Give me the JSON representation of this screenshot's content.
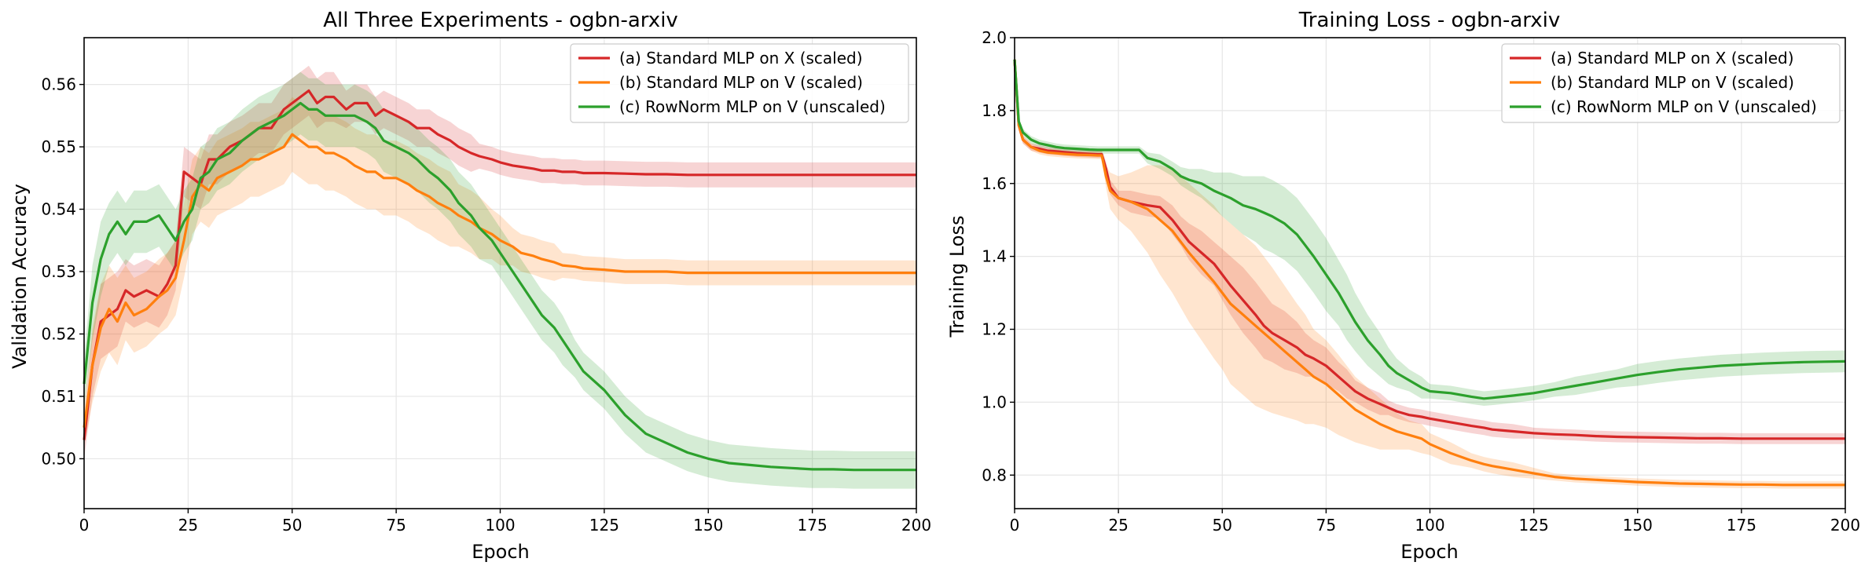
{
  "charts": [
    {
      "title": "All Three Experiments - ogbn-arxiv",
      "xlabel": "Epoch",
      "ylabel": "Validation Accuracy"
    },
    {
      "title": "Training Loss - ogbn-arxiv",
      "xlabel": "Epoch",
      "ylabel": "Training Loss"
    }
  ],
  "chart_data": [
    {
      "type": "line",
      "title": "All Three Experiments - ogbn-arxiv",
      "xlabel": "Epoch",
      "ylabel": "Validation Accuracy",
      "xlim": [
        0,
        200
      ],
      "ylim": [
        0.492,
        0.5675
      ],
      "xticks": [
        0,
        25,
        50,
        75,
        100,
        125,
        150,
        175,
        200
      ],
      "yticks": [
        0.5,
        0.51,
        0.52,
        0.53,
        0.54,
        0.55,
        0.56
      ],
      "grid": true,
      "legend": "top-right",
      "x": [
        0,
        2,
        4,
        6,
        8,
        10,
        12,
        15,
        18,
        20,
        22,
        24,
        26,
        28,
        30,
        32,
        35,
        38,
        40,
        42,
        45,
        48,
        50,
        52,
        54,
        56,
        58,
        60,
        63,
        65,
        68,
        70,
        72,
        75,
        78,
        80,
        83,
        85,
        88,
        90,
        93,
        95,
        98,
        100,
        103,
        105,
        108,
        110,
        113,
        115,
        118,
        120,
        125,
        130,
        135,
        140,
        145,
        150,
        155,
        160,
        165,
        170,
        175,
        180,
        185,
        190,
        195,
        200
      ],
      "series": [
        {
          "name": "(a) Standard MLP on X (scaled)",
          "color": "#d62728",
          "values": [
            0.503,
            0.515,
            0.522,
            0.523,
            0.524,
            0.527,
            0.526,
            0.527,
            0.526,
            0.528,
            0.531,
            0.546,
            0.545,
            0.544,
            0.548,
            0.548,
            0.55,
            0.551,
            0.552,
            0.553,
            0.553,
            0.556,
            0.557,
            0.558,
            0.559,
            0.557,
            0.558,
            0.558,
            0.556,
            0.557,
            0.557,
            0.555,
            0.556,
            0.555,
            0.554,
            0.553,
            0.553,
            0.552,
            0.551,
            0.55,
            0.549,
            0.5485,
            0.548,
            0.5475,
            0.547,
            0.5468,
            0.5465,
            0.5462,
            0.5462,
            0.546,
            0.546,
            0.5458,
            0.5458,
            0.5457,
            0.5456,
            0.5456,
            0.5455,
            0.5455,
            0.5455,
            0.5455,
            0.5455,
            0.5455,
            0.5455,
            0.5455,
            0.5455,
            0.5455,
            0.5455,
            0.5455
          ],
          "band": [
            0.003,
            0.005,
            0.006,
            0.006,
            0.006,
            0.005,
            0.005,
            0.005,
            0.005,
            0.005,
            0.004,
            0.004,
            0.004,
            0.004,
            0.004,
            0.004,
            0.004,
            0.004,
            0.004,
            0.004,
            0.004,
            0.004,
            0.004,
            0.004,
            0.004,
            0.004,
            0.004,
            0.004,
            0.003,
            0.003,
            0.003,
            0.003,
            0.003,
            0.003,
            0.003,
            0.003,
            0.003,
            0.003,
            0.003,
            0.003,
            0.003,
            0.002,
            0.002,
            0.002,
            0.002,
            0.002,
            0.002,
            0.002,
            0.002,
            0.002,
            0.002,
            0.002,
            0.002,
            0.002,
            0.002,
            0.002,
            0.002,
            0.002,
            0.002,
            0.002,
            0.002,
            0.002,
            0.002,
            0.002,
            0.002,
            0.002,
            0.002,
            0.002
          ]
        },
        {
          "name": "(b) Standard MLP on V (scaled)",
          "color": "#ff7f0e",
          "values": [
            0.505,
            0.515,
            0.521,
            0.524,
            0.522,
            0.525,
            0.523,
            0.524,
            0.526,
            0.527,
            0.529,
            0.535,
            0.542,
            0.544,
            0.543,
            0.545,
            0.546,
            0.547,
            0.548,
            0.548,
            0.549,
            0.55,
            0.552,
            0.551,
            0.55,
            0.55,
            0.549,
            0.549,
            0.548,
            0.547,
            0.546,
            0.546,
            0.545,
            0.545,
            0.544,
            0.543,
            0.542,
            0.541,
            0.54,
            0.539,
            0.538,
            0.537,
            0.536,
            0.535,
            0.534,
            0.533,
            0.5325,
            0.532,
            0.5315,
            0.531,
            0.5308,
            0.5305,
            0.5303,
            0.53,
            0.53,
            0.53,
            0.5298,
            0.5298,
            0.5298,
            0.5298,
            0.5298,
            0.5298,
            0.5298,
            0.5298,
            0.5298,
            0.5298,
            0.5298,
            0.5298
          ],
          "band": [
            0.003,
            0.006,
            0.007,
            0.007,
            0.007,
            0.006,
            0.006,
            0.006,
            0.006,
            0.006,
            0.006,
            0.006,
            0.006,
            0.006,
            0.006,
            0.006,
            0.006,
            0.006,
            0.006,
            0.006,
            0.006,
            0.006,
            0.006,
            0.006,
            0.006,
            0.006,
            0.006,
            0.006,
            0.006,
            0.006,
            0.006,
            0.006,
            0.006,
            0.006,
            0.006,
            0.006,
            0.006,
            0.006,
            0.006,
            0.005,
            0.005,
            0.005,
            0.004,
            0.004,
            0.003,
            0.003,
            0.003,
            0.003,
            0.003,
            0.002,
            0.002,
            0.002,
            0.002,
            0.002,
            0.002,
            0.002,
            0.002,
            0.002,
            0.002,
            0.002,
            0.002,
            0.002,
            0.002,
            0.002,
            0.002,
            0.002,
            0.002,
            0.002
          ]
        },
        {
          "name": "(c) RowNorm MLP on V (unscaled)",
          "color": "#2ca02c",
          "values": [
            0.512,
            0.525,
            0.532,
            0.536,
            0.538,
            0.536,
            0.538,
            0.538,
            0.539,
            0.537,
            0.535,
            0.538,
            0.54,
            0.545,
            0.546,
            0.548,
            0.549,
            0.551,
            0.552,
            0.553,
            0.554,
            0.555,
            0.556,
            0.557,
            0.556,
            0.556,
            0.555,
            0.555,
            0.555,
            0.555,
            0.554,
            0.553,
            0.551,
            0.55,
            0.549,
            0.548,
            0.546,
            0.545,
            0.543,
            0.541,
            0.539,
            0.537,
            0.535,
            0.533,
            0.53,
            0.528,
            0.525,
            0.523,
            0.521,
            0.519,
            0.516,
            0.514,
            0.511,
            0.507,
            0.504,
            0.5025,
            0.501,
            0.5,
            0.4993,
            0.499,
            0.4987,
            0.4985,
            0.4983,
            0.4983,
            0.4982,
            0.4982,
            0.4982,
            0.4982
          ],
          "band": [
            0.004,
            0.006,
            0.006,
            0.005,
            0.005,
            0.005,
            0.005,
            0.005,
            0.005,
            0.005,
            0.005,
            0.005,
            0.005,
            0.005,
            0.005,
            0.005,
            0.005,
            0.005,
            0.005,
            0.005,
            0.005,
            0.005,
            0.005,
            0.005,
            0.005,
            0.005,
            0.005,
            0.005,
            0.005,
            0.005,
            0.005,
            0.005,
            0.005,
            0.005,
            0.005,
            0.005,
            0.005,
            0.005,
            0.005,
            0.005,
            0.005,
            0.005,
            0.004,
            0.004,
            0.004,
            0.004,
            0.004,
            0.004,
            0.004,
            0.004,
            0.003,
            0.003,
            0.003,
            0.003,
            0.003,
            0.003,
            0.003,
            0.003,
            0.003,
            0.003,
            0.003,
            0.003,
            0.003,
            0.003,
            0.003,
            0.003,
            0.003,
            0.003
          ]
        }
      ]
    },
    {
      "type": "line",
      "title": "Training Loss - ogbn-arxiv",
      "xlabel": "Epoch",
      "ylabel": "Training Loss",
      "xlim": [
        0,
        200
      ],
      "ylim": [
        0.708,
        2.0
      ],
      "xticks": [
        0,
        25,
        50,
        75,
        100,
        125,
        150,
        175,
        200
      ],
      "yticks": [
        0.8,
        1.0,
        1.2,
        1.4,
        1.6,
        1.8,
        2.0
      ],
      "grid": true,
      "legend": "top-right",
      "x": [
        0,
        1,
        2,
        4,
        6,
        8,
        10,
        12,
        15,
        18,
        20,
        21,
        22,
        23,
        25,
        28,
        30,
        32,
        35,
        38,
        40,
        42,
        45,
        48,
        50,
        52,
        55,
        58,
        60,
        62,
        65,
        68,
        70,
        72,
        75,
        78,
        80,
        82,
        85,
        88,
        90,
        92,
        95,
        98,
        100,
        105,
        110,
        113,
        115,
        120,
        125,
        130,
        135,
        140,
        145,
        150,
        155,
        160,
        165,
        170,
        175,
        180,
        185,
        190,
        195,
        200
      ],
      "series": [
        {
          "name": "(a) Standard MLP on X (scaled)",
          "color": "#d62728",
          "values": [
            1.94,
            1.76,
            1.72,
            1.7,
            1.695,
            1.69,
            1.688,
            1.686,
            1.683,
            1.681,
            1.68,
            1.68,
            1.64,
            1.59,
            1.56,
            1.55,
            1.545,
            1.54,
            1.535,
            1.5,
            1.47,
            1.44,
            1.41,
            1.38,
            1.35,
            1.32,
            1.28,
            1.24,
            1.21,
            1.19,
            1.17,
            1.15,
            1.13,
            1.12,
            1.1,
            1.07,
            1.05,
            1.03,
            1.01,
            0.995,
            0.985,
            0.975,
            0.965,
            0.96,
            0.955,
            0.945,
            0.935,
            0.93,
            0.925,
            0.92,
            0.915,
            0.912,
            0.91,
            0.907,
            0.905,
            0.904,
            0.903,
            0.902,
            0.901,
            0.901,
            0.9,
            0.9,
            0.9,
            0.9,
            0.9,
            0.9
          ],
          "band": [
            0.01,
            0.01,
            0.01,
            0.01,
            0.01,
            0.01,
            0.01,
            0.01,
            0.01,
            0.01,
            0.01,
            0.01,
            0.02,
            0.02,
            0.02,
            0.03,
            0.03,
            0.03,
            0.03,
            0.04,
            0.04,
            0.05,
            0.06,
            0.06,
            0.07,
            0.08,
            0.09,
            0.09,
            0.09,
            0.08,
            0.08,
            0.07,
            0.06,
            0.05,
            0.05,
            0.04,
            0.04,
            0.03,
            0.03,
            0.03,
            0.02,
            0.02,
            0.02,
            0.02,
            0.02,
            0.02,
            0.02,
            0.02,
            0.02,
            0.02,
            0.015,
            0.015,
            0.015,
            0.015,
            0.015,
            0.015,
            0.015,
            0.015,
            0.015,
            0.015,
            0.015,
            0.015,
            0.015,
            0.015,
            0.015,
            0.015
          ]
        },
        {
          "name": "(b) Standard MLP on V (scaled)",
          "color": "#ff7f0e",
          "values": [
            1.94,
            1.76,
            1.72,
            1.7,
            1.69,
            1.685,
            1.683,
            1.681,
            1.679,
            1.678,
            1.677,
            1.677,
            1.62,
            1.58,
            1.56,
            1.55,
            1.54,
            1.53,
            1.5,
            1.47,
            1.44,
            1.41,
            1.37,
            1.33,
            1.3,
            1.27,
            1.24,
            1.21,
            1.19,
            1.17,
            1.14,
            1.11,
            1.09,
            1.07,
            1.05,
            1.02,
            1.0,
            0.98,
            0.96,
            0.94,
            0.93,
            0.92,
            0.91,
            0.9,
            0.885,
            0.86,
            0.84,
            0.83,
            0.825,
            0.815,
            0.805,
            0.795,
            0.79,
            0.787,
            0.784,
            0.781,
            0.779,
            0.777,
            0.776,
            0.775,
            0.774,
            0.774,
            0.773,
            0.773,
            0.773,
            0.773
          ],
          "band": [
            0.01,
            0.01,
            0.01,
            0.01,
            0.01,
            0.01,
            0.01,
            0.01,
            0.01,
            0.01,
            0.01,
            0.01,
            0.03,
            0.05,
            0.06,
            0.08,
            0.1,
            0.12,
            0.15,
            0.17,
            0.18,
            0.19,
            0.2,
            0.21,
            0.21,
            0.22,
            0.22,
            0.22,
            0.21,
            0.2,
            0.18,
            0.16,
            0.15,
            0.13,
            0.12,
            0.11,
            0.1,
            0.09,
            0.08,
            0.07,
            0.06,
            0.05,
            0.04,
            0.04,
            0.03,
            0.03,
            0.02,
            0.02,
            0.02,
            0.02,
            0.015,
            0.01,
            0.01,
            0.01,
            0.01,
            0.01,
            0.01,
            0.01,
            0.01,
            0.01,
            0.01,
            0.01,
            0.01,
            0.01,
            0.01,
            0.01
          ]
        },
        {
          "name": "(c) RowNorm MLP on V (unscaled)",
          "color": "#2ca02c",
          "values": [
            1.94,
            1.77,
            1.74,
            1.72,
            1.71,
            1.705,
            1.7,
            1.697,
            1.695,
            1.693,
            1.692,
            1.692,
            1.692,
            1.692,
            1.692,
            1.692,
            1.692,
            1.67,
            1.66,
            1.64,
            1.62,
            1.61,
            1.6,
            1.58,
            1.57,
            1.56,
            1.54,
            1.53,
            1.52,
            1.51,
            1.49,
            1.46,
            1.43,
            1.4,
            1.35,
            1.3,
            1.26,
            1.22,
            1.17,
            1.13,
            1.1,
            1.08,
            1.06,
            1.04,
            1.03,
            1.025,
            1.015,
            1.01,
            1.012,
            1.018,
            1.025,
            1.035,
            1.045,
            1.055,
            1.065,
            1.075,
            1.083,
            1.09,
            1.095,
            1.1,
            1.103,
            1.106,
            1.108,
            1.11,
            1.111,
            1.112
          ],
          "band": [
            0.01,
            0.01,
            0.01,
            0.01,
            0.01,
            0.01,
            0.01,
            0.01,
            0.01,
            0.01,
            0.01,
            0.01,
            0.01,
            0.01,
            0.01,
            0.01,
            0.01,
            0.015,
            0.02,
            0.02,
            0.025,
            0.03,
            0.04,
            0.05,
            0.06,
            0.07,
            0.08,
            0.09,
            0.1,
            0.1,
            0.1,
            0.1,
            0.1,
            0.1,
            0.1,
            0.09,
            0.09,
            0.08,
            0.07,
            0.06,
            0.05,
            0.04,
            0.03,
            0.03,
            0.02,
            0.02,
            0.02,
            0.02,
            0.02,
            0.02,
            0.02,
            0.02,
            0.025,
            0.025,
            0.025,
            0.03,
            0.03,
            0.03,
            0.03,
            0.03,
            0.03,
            0.03,
            0.03,
            0.03,
            0.03,
            0.03
          ]
        }
      ]
    }
  ]
}
